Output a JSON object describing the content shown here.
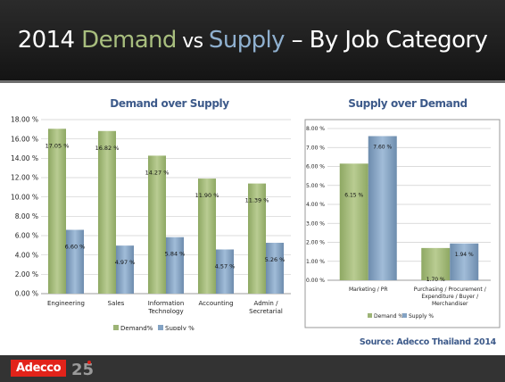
{
  "slide": {
    "title": {
      "prefix": "2014 ",
      "demand": "Demand",
      "vs": " vs ",
      "supply": "Supply",
      "suffix": " – By Job Category"
    },
    "source": "Source: Adecco Thailand 2014",
    "logo_text": "Adecco",
    "anniversary": "25",
    "colors": {
      "header": "#1f1f1f",
      "demand": "#a8be7e",
      "supply": "#8fb0cf",
      "logo": "#e2231a",
      "chart_title": "#3d5a8a"
    }
  },
  "chart_data": [
    {
      "type": "bar",
      "title": "Demand over Supply",
      "categories": [
        [
          "Engineering"
        ],
        [
          "Sales"
        ],
        [
          "Information",
          "Technology"
        ],
        [
          "Accounting"
        ],
        [
          "Admin /",
          "Secretarial"
        ]
      ],
      "series": [
        {
          "name": "Demand%",
          "values": [
            17.05,
            16.82,
            14.27,
            11.9,
            11.39
          ],
          "labels": [
            "17.05 %",
            "16.82 %",
            "14.27 %",
            "11.90 %",
            "11.39 %"
          ]
        },
        {
          "name": "Supply %",
          "values": [
            6.6,
            4.97,
            5.84,
            4.57,
            5.26
          ],
          "labels": [
            "6.60 %",
            "4.97 %",
            "5.84 %",
            "4.57 %",
            "5.26 %"
          ]
        }
      ],
      "ylim": [
        0,
        18
      ],
      "yticks": [
        0,
        2,
        4,
        6,
        8,
        10,
        12,
        14,
        16,
        18
      ],
      "ytick_labels": [
        "0.00 %",
        "2.00 %",
        "4.00 %",
        "6.00 %",
        "8.00 %",
        "10.00 %",
        "12.00 %",
        "14.00 %",
        "16.00 %",
        "18.00 %"
      ],
      "grid": true,
      "legend": "bottom"
    },
    {
      "type": "bar",
      "title": "Supply over Demand",
      "categories": [
        [
          "Marketing / PR"
        ],
        [
          "Purchasing / Procurement /",
          "Expenditure / Buyer /",
          "Merchandiser"
        ]
      ],
      "series": [
        {
          "name": "Demand %",
          "values": [
            6.15,
            1.7
          ],
          "labels": [
            "6.15 %",
            "1.70 %"
          ]
        },
        {
          "name": "Supply %",
          "values": [
            7.6,
            1.94
          ],
          "labels": [
            "7.60 %",
            "1.94 %"
          ]
        }
      ],
      "ylim": [
        0,
        8
      ],
      "yticks": [
        0,
        1,
        2,
        3,
        4,
        5,
        6,
        7,
        8
      ],
      "ytick_labels": [
        "0.00 %",
        "1.00 %",
        "2.00 %",
        "3.00 %",
        "4.00 %",
        "5.00 %",
        "6.00 %",
        "7.00 %",
        "8.00 %"
      ],
      "grid": true,
      "legend": "bottom"
    }
  ]
}
